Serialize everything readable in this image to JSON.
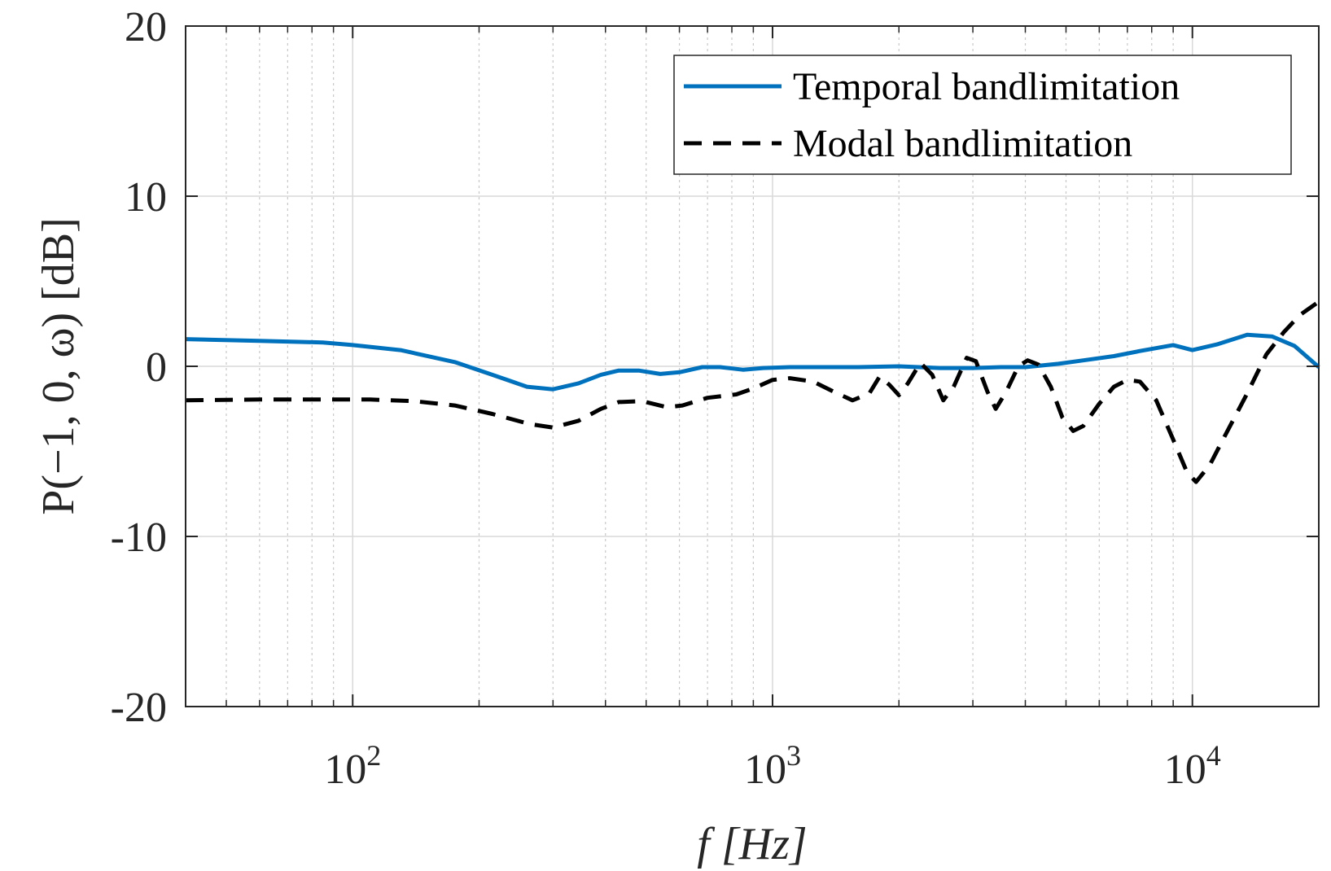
{
  "chart_data": {
    "type": "line",
    "xscale": "log",
    "xlim": [
      40,
      20000
    ],
    "ylim": [
      -20,
      20
    ],
    "grid": true,
    "legend_position": "top-right",
    "xlabel": "f  [Hz]",
    "ylabel": "P(−1, 0, ω)  [dB]",
    "x_ticks": [
      {
        "value": 100,
        "base": "10",
        "exp": "2"
      },
      {
        "value": 1000,
        "base": "10",
        "exp": "3"
      },
      {
        "value": 10000,
        "base": "10",
        "exp": "4"
      }
    ],
    "y_ticks": [
      {
        "value": 20,
        "label": "20"
      },
      {
        "value": 10,
        "label": "10"
      },
      {
        "value": 0,
        "label": "0"
      },
      {
        "value": -10,
        "label": "-10"
      },
      {
        "value": -20,
        "label": "-20"
      }
    ],
    "series": [
      {
        "name": "Temporal bandlimitation",
        "color": "#0072BD",
        "dash": "solid",
        "points": [
          [
            40,
            1.6
          ],
          [
            60,
            1.5
          ],
          [
            85,
            1.4
          ],
          [
            100,
            1.25
          ],
          [
            130,
            0.95
          ],
          [
            175,
            0.25
          ],
          [
            215,
            -0.5
          ],
          [
            260,
            -1.2
          ],
          [
            300,
            -1.35
          ],
          [
            345,
            -1.0
          ],
          [
            390,
            -0.5
          ],
          [
            430,
            -0.25
          ],
          [
            480,
            -0.25
          ],
          [
            540,
            -0.45
          ],
          [
            600,
            -0.35
          ],
          [
            680,
            -0.05
          ],
          [
            750,
            -0.05
          ],
          [
            850,
            -0.2
          ],
          [
            950,
            -0.1
          ],
          [
            1100,
            -0.05
          ],
          [
            1300,
            -0.05
          ],
          [
            1600,
            -0.05
          ],
          [
            2000,
            0.0
          ],
          [
            2500,
            -0.1
          ],
          [
            3000,
            -0.1
          ],
          [
            3500,
            -0.05
          ],
          [
            4000,
            -0.05
          ],
          [
            4800,
            0.15
          ],
          [
            5500,
            0.35
          ],
          [
            6500,
            0.6
          ],
          [
            7500,
            0.9
          ],
          [
            9000,
            1.25
          ],
          [
            10000,
            0.95
          ],
          [
            11500,
            1.3
          ],
          [
            13500,
            1.85
          ],
          [
            15500,
            1.75
          ],
          [
            17500,
            1.2
          ],
          [
            20000,
            -0.05
          ]
        ]
      },
      {
        "name": "Modal bandlimitation",
        "color": "#000000",
        "dash": "dashed",
        "points": [
          [
            40,
            -2.0
          ],
          [
            60,
            -1.95
          ],
          [
            85,
            -1.95
          ],
          [
            110,
            -1.95
          ],
          [
            140,
            -2.05
          ],
          [
            175,
            -2.3
          ],
          [
            215,
            -2.8
          ],
          [
            265,
            -3.4
          ],
          [
            300,
            -3.6
          ],
          [
            345,
            -3.2
          ],
          [
            390,
            -2.5
          ],
          [
            430,
            -2.1
          ],
          [
            490,
            -2.05
          ],
          [
            560,
            -2.4
          ],
          [
            610,
            -2.3
          ],
          [
            700,
            -1.85
          ],
          [
            820,
            -1.65
          ],
          [
            900,
            -1.3
          ],
          [
            1000,
            -0.8
          ],
          [
            1100,
            -0.7
          ],
          [
            1250,
            -0.9
          ],
          [
            1400,
            -1.5
          ],
          [
            1550,
            -2.0
          ],
          [
            1700,
            -1.6
          ],
          [
            1800,
            -0.6
          ],
          [
            1900,
            -1.1
          ],
          [
            2000,
            -1.7
          ],
          [
            2100,
            -1.0
          ],
          [
            2250,
            0.2
          ],
          [
            2400,
            -0.5
          ],
          [
            2550,
            -2.0
          ],
          [
            2700,
            -1.2
          ],
          [
            2900,
            0.5
          ],
          [
            3050,
            0.3
          ],
          [
            3250,
            -1.5
          ],
          [
            3400,
            -2.5
          ],
          [
            3600,
            -1.5
          ],
          [
            3850,
            0.0
          ],
          [
            4050,
            0.35
          ],
          [
            4300,
            0.1
          ],
          [
            4600,
            -1.2
          ],
          [
            4900,
            -3.0
          ],
          [
            5200,
            -3.8
          ],
          [
            5500,
            -3.5
          ],
          [
            6000,
            -2.2
          ],
          [
            6500,
            -1.2
          ],
          [
            7000,
            -0.8
          ],
          [
            7500,
            -0.9
          ],
          [
            8200,
            -2.0
          ],
          [
            9000,
            -4.3
          ],
          [
            9700,
            -6.2
          ],
          [
            10200,
            -6.8
          ],
          [
            11000,
            -5.8
          ],
          [
            12000,
            -4.0
          ],
          [
            13500,
            -1.6
          ],
          [
            15000,
            0.7
          ],
          [
            16500,
            2.0
          ],
          [
            18000,
            3.0
          ],
          [
            20000,
            3.8
          ]
        ]
      }
    ]
  }
}
